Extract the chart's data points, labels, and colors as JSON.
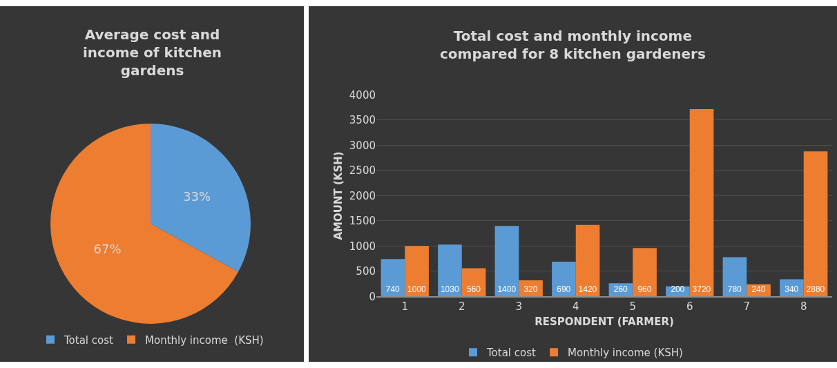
{
  "chart_data": [
    {
      "type": "pie",
      "title": "Average cost and income of kitchen gardens",
      "categories": [
        "Total cost",
        "Monthly income  (KSH)"
      ],
      "values": [
        33,
        67
      ],
      "colors": [
        "#5b9bd5",
        "#ed7d31"
      ],
      "value_labels": [
        "33%",
        "67%"
      ],
      "legend": "bottom"
    },
    {
      "type": "bar",
      "title": "Total cost and monthly income compared for 8 kitchen gardeners",
      "xlabel": "RESPONDENT (FARMER)",
      "ylabel": "AMOUNT (KSH)",
      "categories": [
        "1",
        "2",
        "3",
        "4",
        "5",
        "6",
        "7",
        "8"
      ],
      "series": [
        {
          "name": "Total cost",
          "color": "#5b9bd5",
          "values": [
            740,
            1030,
            1400,
            690,
            260,
            200,
            780,
            340
          ]
        },
        {
          "name": "Monthly income (KSH)",
          "color": "#ed7d31",
          "values": [
            1000,
            560,
            320,
            1420,
            960,
            3720,
            240,
            2880
          ]
        }
      ],
      "ylim": [
        0,
        4000
      ],
      "yticks": [
        0,
        500,
        1000,
        1500,
        2000,
        2500,
        3000,
        3500,
        4000
      ],
      "grid": "y",
      "data_labels": true,
      "legend": "bottom"
    }
  ]
}
